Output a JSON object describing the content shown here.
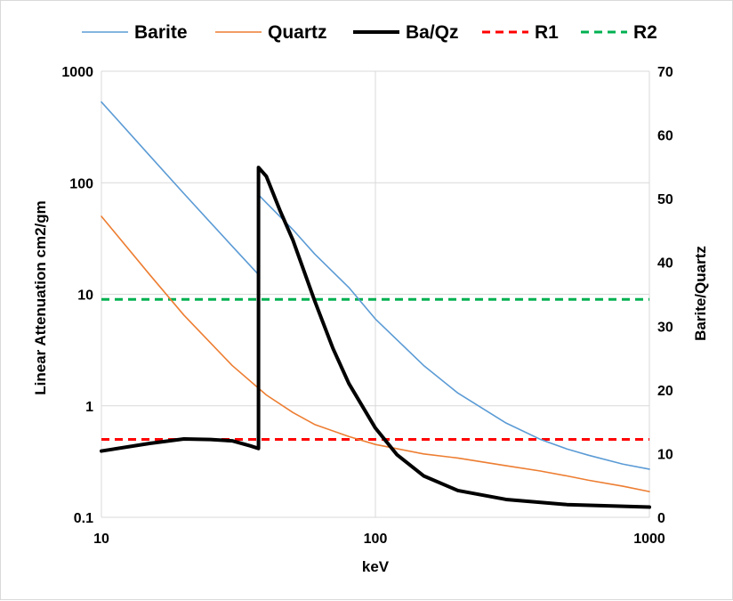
{
  "chart_data": {
    "type": "line",
    "title": "",
    "xlabel": "keV",
    "ylabel": "Linear Attenuation cm2/gm",
    "y2label": "Barite/Quartz",
    "x_scale": "log",
    "y_scale": "log",
    "xlim": [
      10,
      1000
    ],
    "ylim": [
      0.1,
      1000
    ],
    "y2lim": [
      0,
      70
    ],
    "x_ticks": [
      "10",
      "100",
      "1000"
    ],
    "y_ticks": [
      "0.1",
      "1",
      "10",
      "100",
      "1000"
    ],
    "y2_ticks": [
      "0",
      "10",
      "20",
      "30",
      "40",
      "50",
      "60",
      "70"
    ],
    "grid": true,
    "legend_position": "top",
    "series": [
      {
        "name": "Barite",
        "axis": "left",
        "color": "#5b9bd5",
        "dash": "solid",
        "x": [
          10,
          15,
          20,
          25,
          30,
          37.44,
          37.44,
          40,
          50,
          60,
          80,
          100,
          150,
          200,
          300,
          400,
          500,
          600,
          800,
          1000
        ],
        "y": [
          530,
          175,
          80,
          44,
          27,
          15,
          78,
          66,
          38,
          23,
          11.5,
          6,
          2.3,
          1.3,
          0.7,
          0.5,
          0.41,
          0.36,
          0.3,
          0.27
        ]
      },
      {
        "name": "Quartz",
        "axis": "left",
        "color": "#ed7d31",
        "dash": "solid",
        "x": [
          10,
          15,
          20,
          30,
          40,
          50,
          60,
          80,
          100,
          150,
          200,
          300,
          400,
          500,
          600,
          800,
          1000
        ],
        "y": [
          50,
          15,
          6.5,
          2.3,
          1.25,
          0.87,
          0.68,
          0.53,
          0.45,
          0.37,
          0.34,
          0.29,
          0.26,
          0.235,
          0.215,
          0.19,
          0.17
        ]
      },
      {
        "name": "Ba/Qz",
        "axis": "right",
        "color": "#000000",
        "dash": "solid",
        "x": [
          10,
          15,
          20,
          25,
          30,
          35,
          37.44,
          37.44,
          40,
          45,
          50,
          60,
          70,
          80,
          100,
          120,
          150,
          200,
          300,
          500,
          1000
        ],
        "y": [
          10.4,
          11.6,
          12.3,
          12.2,
          12.0,
          11.2,
          10.8,
          54.9,
          53.5,
          48,
          43.5,
          34,
          26.5,
          21,
          14,
          9.8,
          6.5,
          4.2,
          2.8,
          2.0,
          1.6
        ]
      },
      {
        "name": "R1",
        "axis": "left",
        "color": "#ff0000",
        "dash": "dashed",
        "x": [
          10,
          1000
        ],
        "y": [
          0.5,
          0.5
        ]
      },
      {
        "name": "R2",
        "axis": "left",
        "color": "#00b050",
        "dash": "dashed",
        "x": [
          10,
          1000
        ],
        "y": [
          9,
          9
        ]
      }
    ]
  }
}
